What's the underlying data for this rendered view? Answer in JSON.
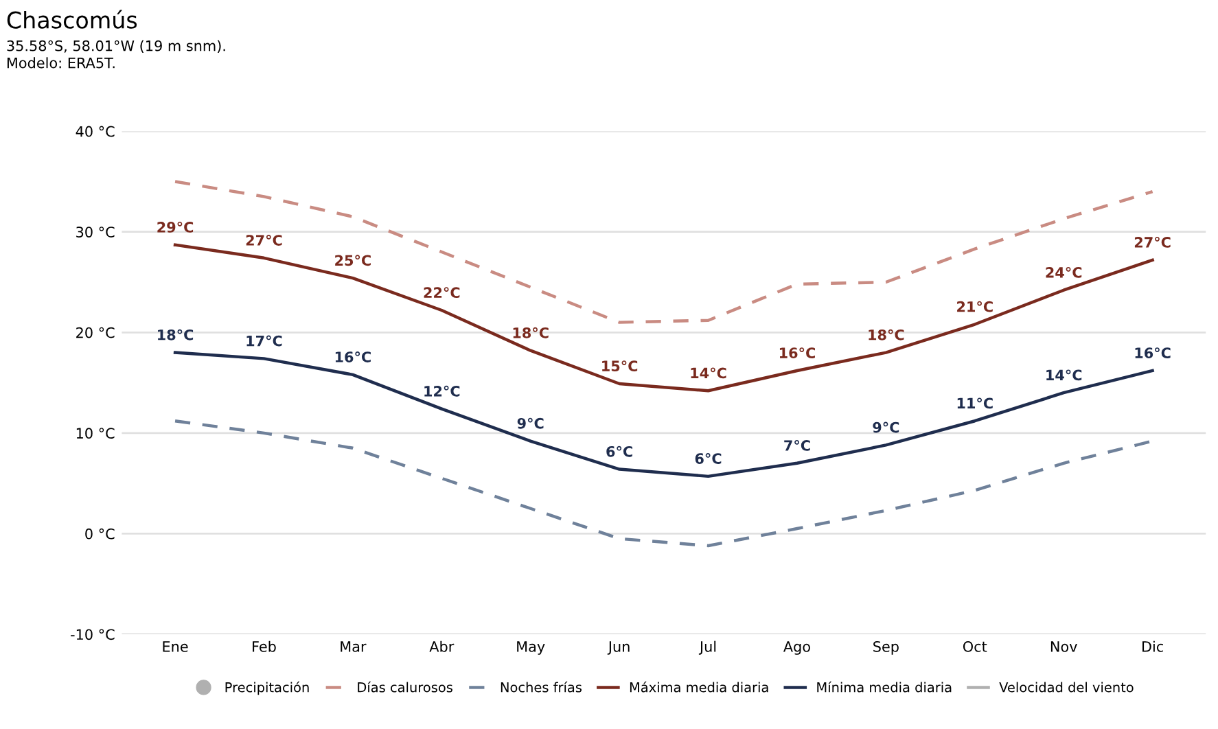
{
  "chart_data": {
    "type": "line",
    "title": "Chascomús",
    "subtitle": "35.58°S, 58.01°W (19 m snm).\nModelo: ERA5T.",
    "categories": [
      "Ene",
      "Feb",
      "Mar",
      "Abr",
      "May",
      "Jun",
      "Jul",
      "Ago",
      "Sep",
      "Oct",
      "Nov",
      "Dic"
    ],
    "series": [
      {
        "name": "Precipitación",
        "type": "scatter",
        "color": "#b0b0b0",
        "values": [
          null,
          null,
          null,
          null,
          null,
          null,
          null,
          null,
          null,
          null,
          null,
          null
        ]
      },
      {
        "name": "Días calurosos",
        "color": "#c98b82",
        "line_style": "dashed",
        "values": [
          35.0,
          33.5,
          31.5,
          28.0,
          24.5,
          21.0,
          21.2,
          24.8,
          25.0,
          28.3,
          31.3,
          34.0
        ]
      },
      {
        "name": "Noches frías",
        "color": "#6f819a",
        "line_style": "dashed",
        "values": [
          11.2,
          10.0,
          8.5,
          5.5,
          2.5,
          -0.5,
          -1.2,
          0.5,
          2.3,
          4.3,
          7.0,
          9.2
        ]
      },
      {
        "name": "Máxima media diaria",
        "color": "#7a2a1e",
        "line_style": "solid",
        "values": [
          28.7,
          27.4,
          25.4,
          22.2,
          18.2,
          14.9,
          14.2,
          16.2,
          18.0,
          20.8,
          24.2,
          27.2
        ],
        "value_labels": [
          "29°C",
          "27°C",
          "25°C",
          "22°C",
          "18°C",
          "15°C",
          "14°C",
          "16°C",
          "18°C",
          "21°C",
          "24°C",
          "27°C"
        ]
      },
      {
        "name": "Mínima media diaria",
        "color": "#1f2d4e",
        "line_style": "solid",
        "values": [
          18.0,
          17.4,
          15.8,
          12.4,
          9.2,
          6.4,
          5.7,
          7.0,
          8.8,
          11.2,
          14.0,
          16.2
        ],
        "value_labels": [
          "18°C",
          "17°C",
          "16°C",
          "12°C",
          "9°C",
          "6°C",
          "6°C",
          "7°C",
          "9°C",
          "11°C",
          "14°C",
          "16°C"
        ]
      },
      {
        "name": "Velocidad del viento",
        "color": "#b0b0b0",
        "line_style": "solid",
        "values": [
          null,
          null,
          null,
          null,
          null,
          null,
          null,
          null,
          null,
          null,
          null,
          null
        ]
      }
    ],
    "ylim": [
      -10,
      40
    ],
    "yticks": [
      {
        "value": -10,
        "label": "-10 °C"
      },
      {
        "value": 0,
        "label": "0 °C"
      },
      {
        "value": 10,
        "label": "10 °C"
      },
      {
        "value": 20,
        "label": "20 °C"
      },
      {
        "value": 30,
        "label": "30 °C"
      },
      {
        "value": 40,
        "label": "40 °C"
      }
    ],
    "grid": "y",
    "legend": "bottom",
    "marker": "none"
  }
}
